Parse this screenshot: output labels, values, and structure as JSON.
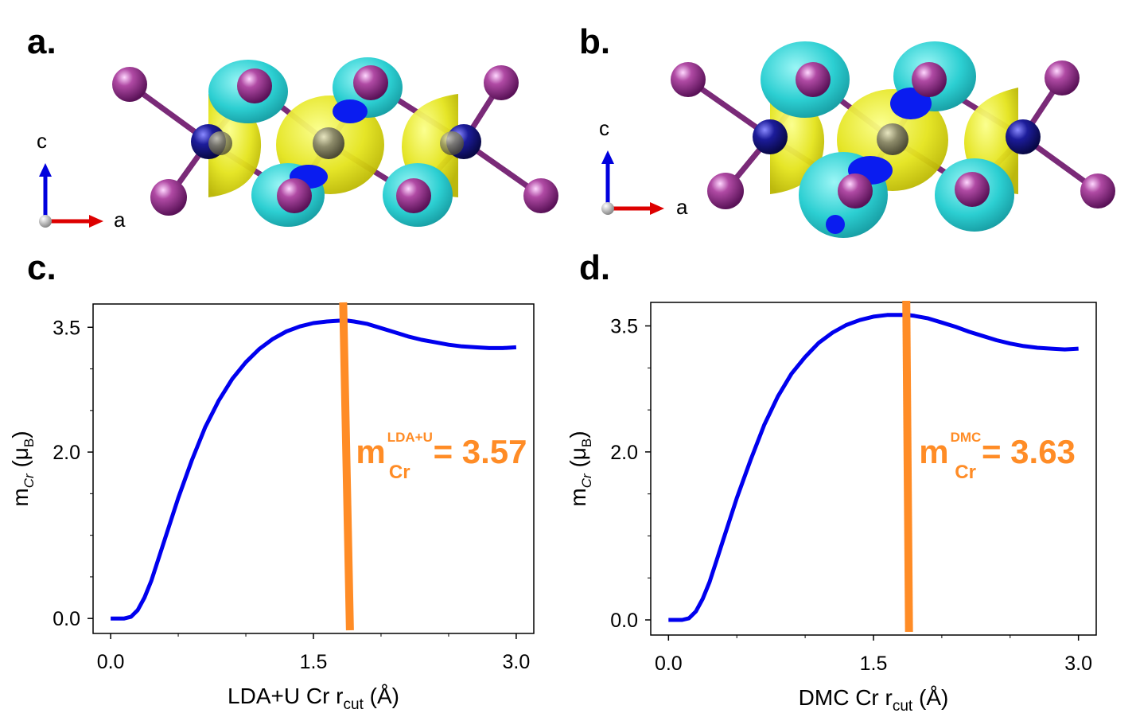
{
  "panels": {
    "a": "a.",
    "b": "b.",
    "c": "c.",
    "d": "d."
  },
  "structure_axes": {
    "c_label": "c",
    "a_label": "a"
  },
  "colors": {
    "curve": "#0000ee",
    "marker": "#ff8c26",
    "spin_up": "#f0f020",
    "spin_down_cyan": "#29d6d6",
    "spin_down_blue": "#0a1cf0",
    "iodine": "#9a2a8c",
    "chromium": "#1a1a8a"
  },
  "chart_data": [
    {
      "id": "c",
      "type": "line",
      "xlabel_main": "LDA+U Cr r",
      "xlabel_sub": "cut",
      "xlabel_unit": " (Å)",
      "ylabel_main": "m",
      "ylabel_sub": "Cr",
      "ylabel_unit_open": " (μ",
      "ylabel_unit_sub": "B",
      "ylabel_unit_close": ")",
      "xlim": [
        -0.13,
        3.13
      ],
      "ylim": [
        -0.18,
        3.78
      ],
      "xticks": [
        "0.0",
        "1.5",
        "3.0"
      ],
      "xtick_values": [
        0.0,
        1.5,
        3.0
      ],
      "yticks": [
        "0.0",
        "2.0",
        "3.5"
      ],
      "ytick_values": [
        0.0,
        2.0,
        3.5
      ],
      "series": [
        {
          "x": [
            0.0,
            0.1,
            0.15,
            0.2,
            0.25,
            0.3,
            0.35,
            0.4,
            0.5,
            0.6,
            0.7,
            0.8,
            0.9,
            1.0,
            1.1,
            1.2,
            1.3,
            1.4,
            1.5,
            1.6,
            1.7,
            1.75,
            1.8,
            1.9,
            2.0,
            2.1,
            2.2,
            2.3,
            2.4,
            2.5,
            2.6,
            2.7,
            2.8,
            2.9,
            3.0
          ],
          "y": [
            0.0,
            0.0,
            0.02,
            0.1,
            0.25,
            0.45,
            0.7,
            0.95,
            1.45,
            1.9,
            2.3,
            2.62,
            2.88,
            3.08,
            3.24,
            3.36,
            3.45,
            3.51,
            3.55,
            3.57,
            3.58,
            3.58,
            3.57,
            3.54,
            3.49,
            3.44,
            3.39,
            3.35,
            3.32,
            3.29,
            3.27,
            3.26,
            3.25,
            3.25,
            3.26
          ]
        }
      ],
      "marker_line": {
        "x_top": 1.72,
        "x_bottom": 1.77
      },
      "annotation": {
        "main": "m",
        "sup": "LDA+U",
        "sub": "Cr",
        "value": "= 3.57"
      }
    },
    {
      "id": "d",
      "type": "line",
      "xlabel_main": "DMC Cr r",
      "xlabel_sub": "cut",
      "xlabel_unit": " (Å)",
      "ylabel_main": "m",
      "ylabel_sub": "Cr",
      "ylabel_unit_open": " (μ",
      "ylabel_unit_sub": "B",
      "ylabel_unit_close": ")",
      "xlim": [
        -0.13,
        3.13
      ],
      "ylim": [
        -0.18,
        3.78
      ],
      "xticks": [
        "0.0",
        "1.5",
        "3.0"
      ],
      "xtick_values": [
        0.0,
        1.5,
        3.0
      ],
      "yticks": [
        "0.0",
        "2.0",
        "3.5"
      ],
      "ytick_values": [
        0.0,
        2.0,
        3.5
      ],
      "series": [
        {
          "x": [
            0.0,
            0.1,
            0.15,
            0.2,
            0.25,
            0.3,
            0.35,
            0.4,
            0.5,
            0.6,
            0.7,
            0.8,
            0.9,
            1.0,
            1.1,
            1.2,
            1.3,
            1.4,
            1.5,
            1.6,
            1.7,
            1.75,
            1.8,
            1.9,
            2.0,
            2.1,
            2.2,
            2.3,
            2.4,
            2.5,
            2.6,
            2.7,
            2.8,
            2.9,
            3.0
          ],
          "y": [
            0.0,
            0.0,
            0.02,
            0.1,
            0.25,
            0.45,
            0.7,
            0.95,
            1.45,
            1.9,
            2.32,
            2.66,
            2.93,
            3.13,
            3.3,
            3.42,
            3.51,
            3.57,
            3.61,
            3.63,
            3.63,
            3.63,
            3.62,
            3.59,
            3.54,
            3.49,
            3.43,
            3.38,
            3.33,
            3.29,
            3.26,
            3.24,
            3.23,
            3.22,
            3.23
          ]
        }
      ],
      "marker_line": {
        "x_top": 1.74,
        "x_bottom": 1.76
      },
      "annotation": {
        "main": "m",
        "sup": "DMC",
        "sub": "Cr",
        "value": "= 3.63"
      }
    }
  ]
}
